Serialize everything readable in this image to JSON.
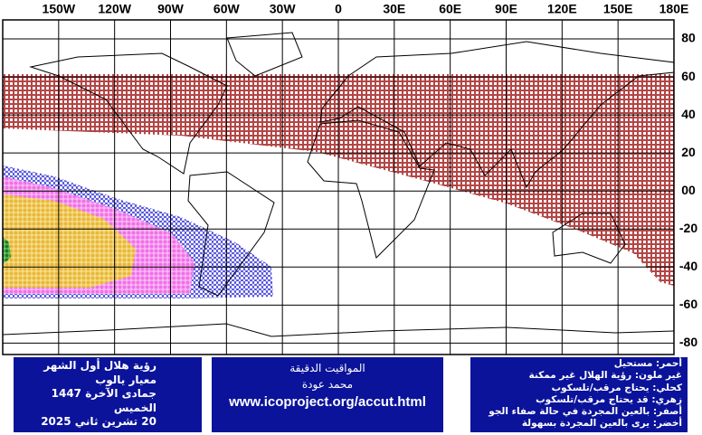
{
  "map": {
    "xlim": [
      -180,
      180
    ],
    "ylim": [
      -86,
      90
    ],
    "xticks": [
      {
        "value": -150,
        "label": "150W"
      },
      {
        "value": -120,
        "label": "120W"
      },
      {
        "value": -90,
        "label": "90W"
      },
      {
        "value": -60,
        "label": "60W"
      },
      {
        "value": -30,
        "label": "30W"
      },
      0,
      {
        "value": 30,
        "label": "30E"
      },
      {
        "value": 60,
        "label": "60E"
      },
      {
        "value": 90,
        "label": "90E"
      },
      {
        "value": 120,
        "label": "120E"
      },
      {
        "value": 150,
        "label": "150E"
      },
      {
        "value": 180,
        "label": "180E"
      }
    ],
    "yticks": [
      80,
      60,
      40,
      20,
      {
        "value": 0,
        "label": "00"
      },
      -20,
      -40,
      -60,
      -80
    ]
  },
  "panels": {
    "left": [
      "رؤية هلال أول الشهر",
      "معيار يالوب",
      "جمادى الآخرة 1447",
      "الخميس",
      "20 تشرين ثاني 2025"
    ],
    "center": [
      "المواقيت الدقيقة",
      "محمد عودة",
      "www.icoproject.org/accut.html"
    ],
    "right": [
      "أحمر: مستحيل",
      "غير ملون: رؤية الهلال غير ممكنة",
      "كحلي: يحتاج مرقب/تلسكوب",
      "زهري: قد يحتاج مرقب/تلسكوب",
      "أصفر: بالعين المجردة في حالة صفاء الجو",
      "أخضر: يرى بالعين المجردة بسهولة"
    ]
  }
}
